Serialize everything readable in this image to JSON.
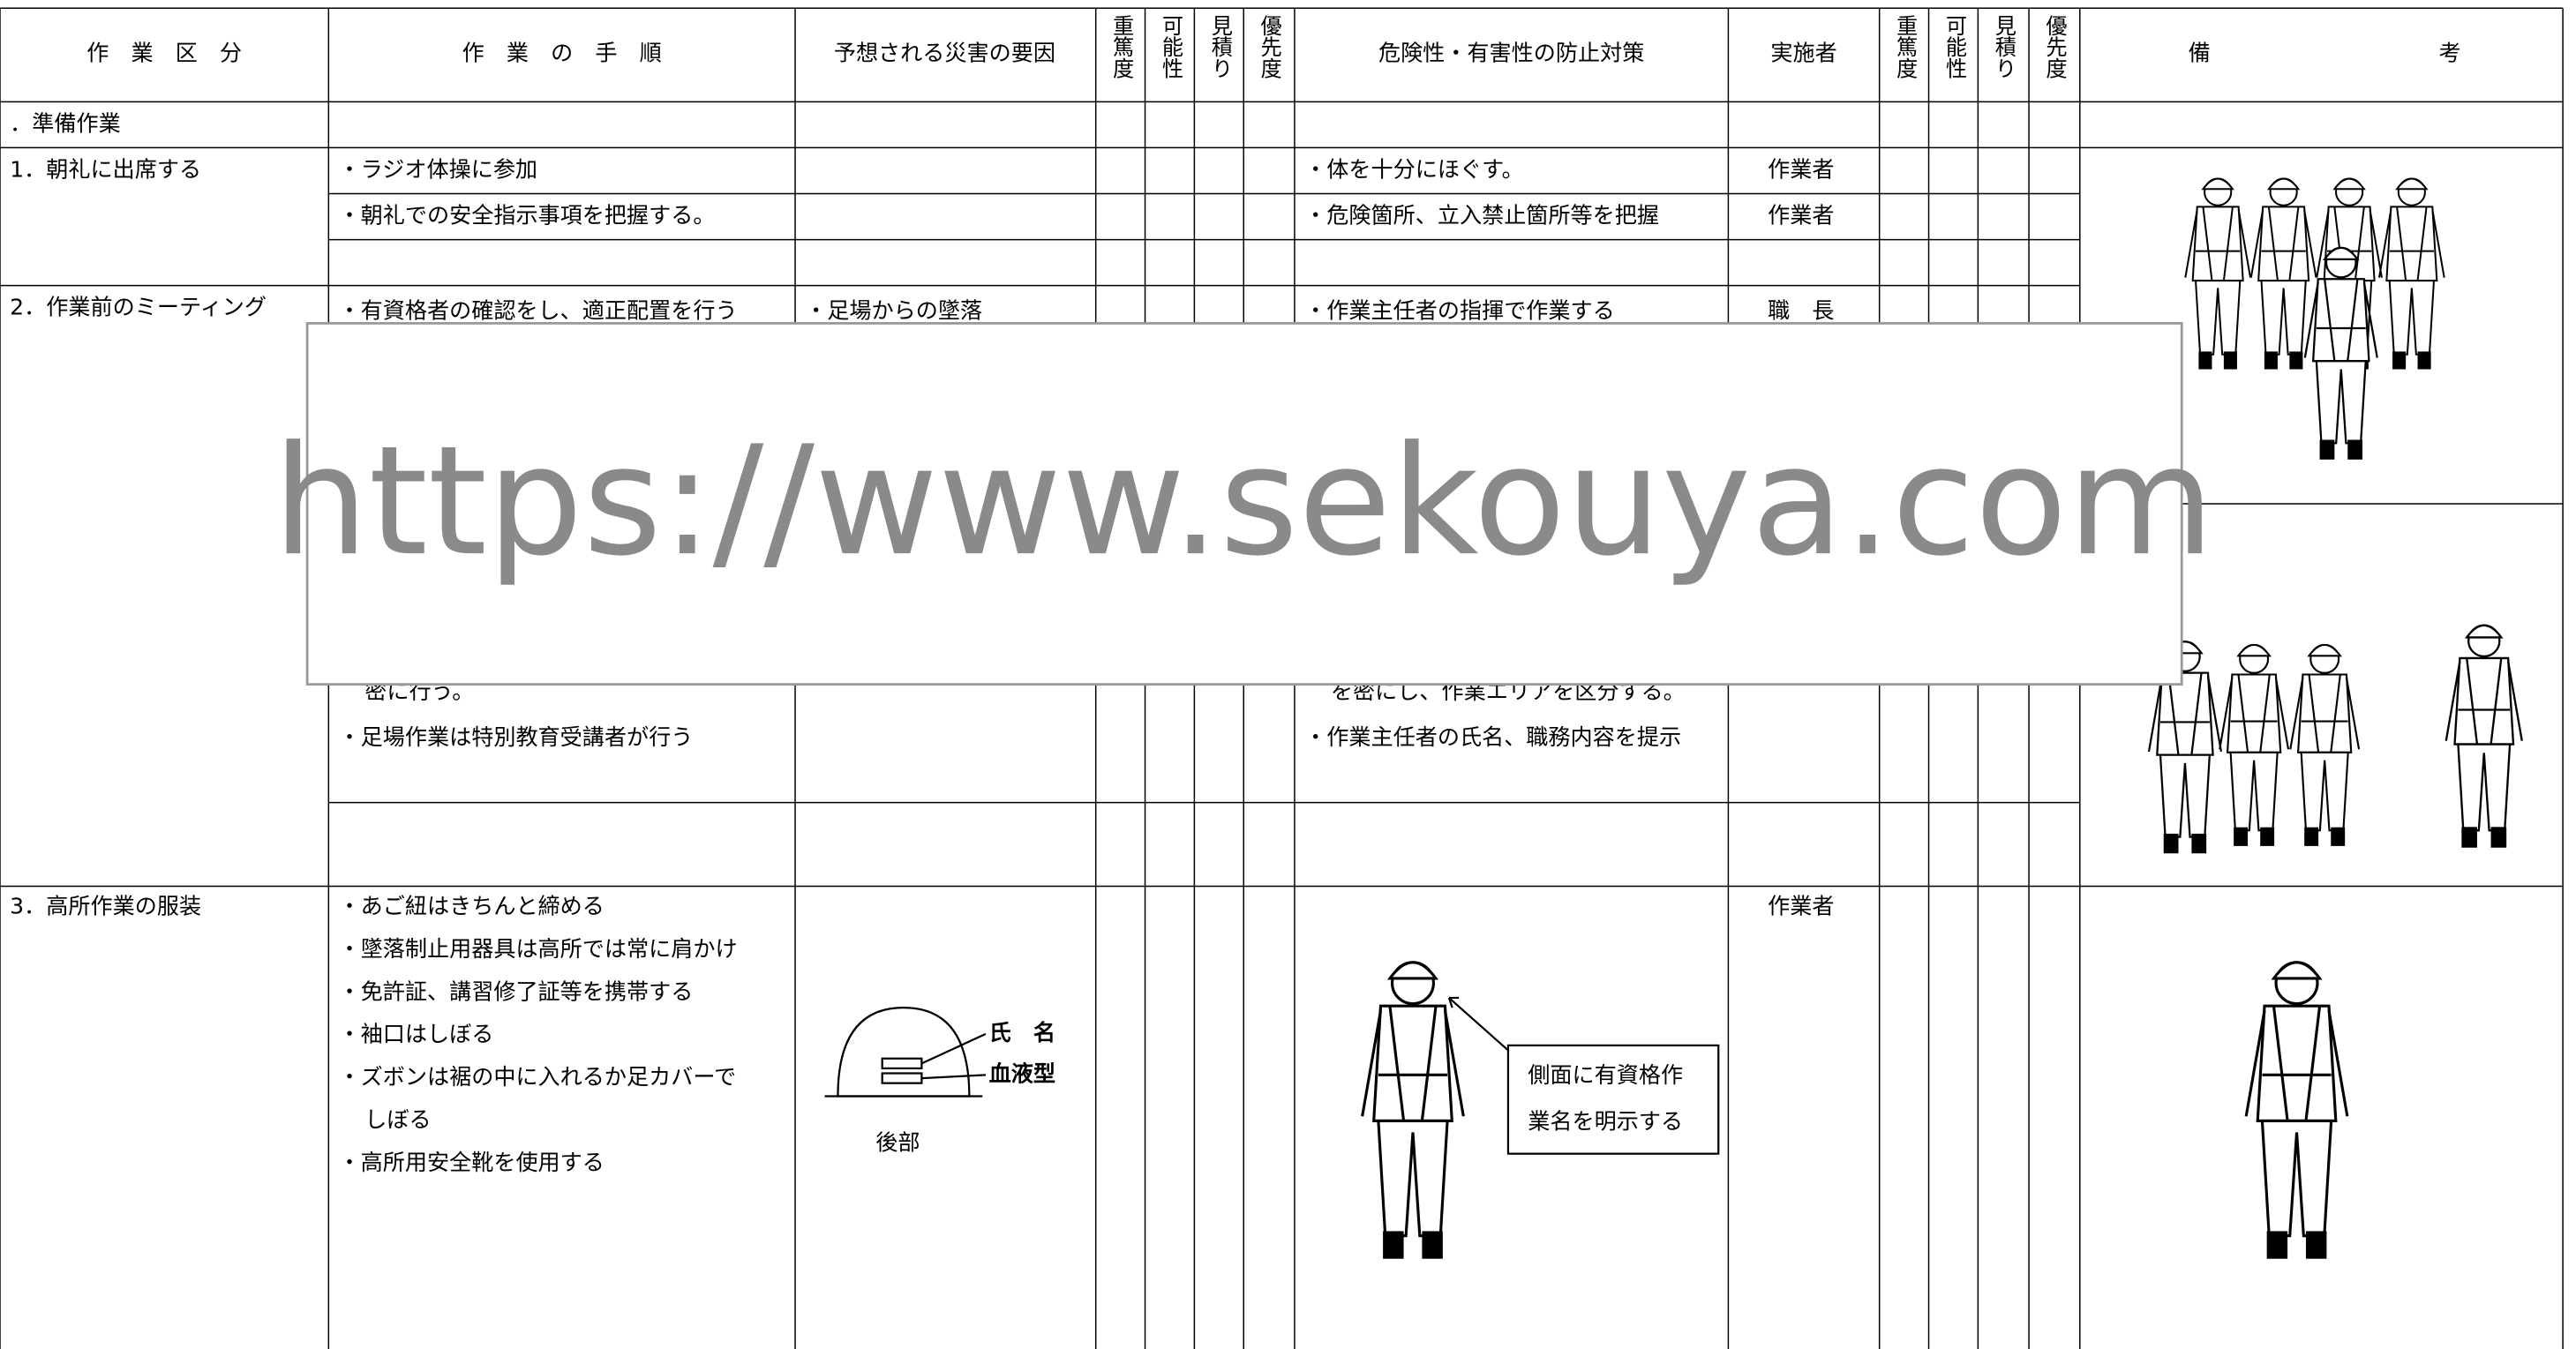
{
  "header": {
    "columns": [
      "作　業　区　分",
      "作　業　の　手　順",
      "予想される災害の要因",
      "重篤度",
      "可能性",
      "見積り",
      "優先度",
      "危険性・有害性の防止対策",
      "実施者",
      "重篤度",
      "可能性",
      "見積り",
      "優先度",
      "備考"
    ]
  },
  "rows": [
    {
      "category": "．準備作業"
    },
    {
      "category": "1．朝礼に出席する",
      "steps": [
        "・ラジオ体操に参加",
        "・朝礼での安全指示事項を把握する。"
      ],
      "measures": [
        "・体を十分にほぐす。",
        "・危険箇所、立入禁止箇所等を把握"
      ],
      "performers": [
        "作業者",
        "作業者"
      ]
    },
    {
      "category": "2．作業前のミーティング",
      "steps": [
        "・有資格者の確認をし、適正配置を行う",
        "密に行う。",
        "・足場作業は特別教育受講者が行う"
      ],
      "hazards": [
        "・足場からの墜落"
      ],
      "measures": [
        "・作業主任者の指揮で作業する",
        "を密にし、作業エリアを区分する。",
        "・作業主任者の氏名、職務内容を提示"
      ],
      "performers": [
        "職　長"
      ]
    },
    {
      "category": "3．高所作業の服装",
      "steps": [
        "・あご紐はきちんと締める",
        "・墜落制止用器具は高所では常に肩かけ",
        "・免許証、講習修了証等を携帯する",
        "・袖口はしぼる",
        "・ズボンは裾の中に入れるか足カバーで",
        "しぼる",
        "・高所用安全靴を使用する"
      ],
      "hazard_figure": {
        "labels": [
          "氏　名",
          "血液型"
        ],
        "caption": "後部"
      },
      "measure_callout": [
        "側面に有資格作",
        "業名を明示する"
      ],
      "performers": [
        "作業者"
      ]
    }
  ],
  "watermark": "https://www.sekouya.com"
}
